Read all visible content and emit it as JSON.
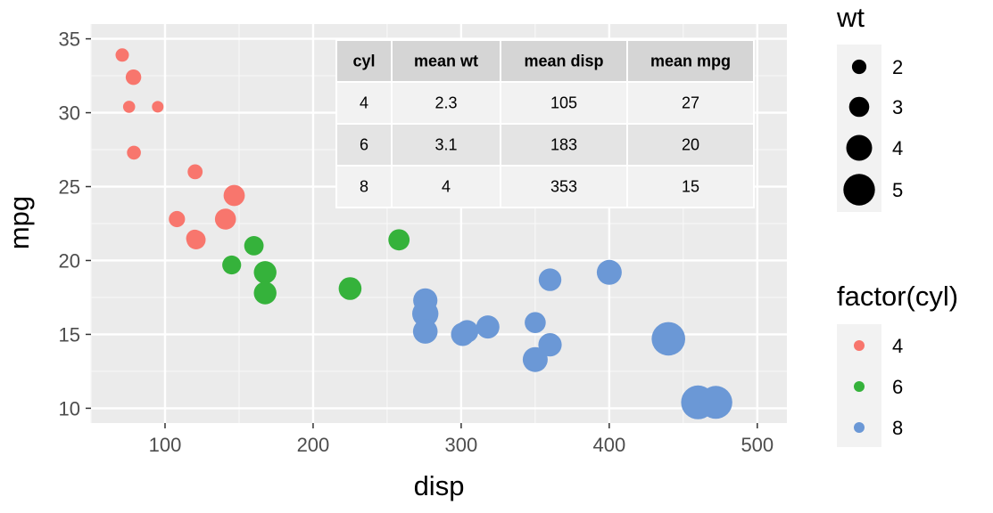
{
  "chart_data": {
    "type": "scatter",
    "xlabel": "disp",
    "ylabel": "mpg",
    "xlim": [
      50,
      520
    ],
    "ylim": [
      9,
      36
    ],
    "x_ticks": [
      100,
      200,
      300,
      400,
      500
    ],
    "y_ticks": [
      10,
      15,
      20,
      25,
      30,
      35
    ],
    "grid": true,
    "size_legend": {
      "title": "wt",
      "values": [
        2,
        3,
        4,
        5
      ]
    },
    "color_legend": {
      "title": "factor(cyl)",
      "entries": [
        {
          "label": "4",
          "color": "#F8766D"
        },
        {
          "label": "6",
          "color": "#35B23B"
        },
        {
          "label": "8",
          "color": "#6B98D6"
        }
      ]
    },
    "table": {
      "headers": [
        "cyl",
        "mean wt",
        "mean disp",
        "mean mpg"
      ],
      "rows": [
        [
          "4",
          "2.3",
          "105",
          "27"
        ],
        [
          "6",
          "3.1",
          "183",
          "20"
        ],
        [
          "8",
          "4",
          "353",
          "15"
        ]
      ]
    },
    "series": [
      {
        "name": "4",
        "color": "#F8766D",
        "points": [
          {
            "x": 71.1,
            "y": 33.9,
            "wt": 1.8
          },
          {
            "x": 78.7,
            "y": 32.4,
            "wt": 2.2
          },
          {
            "x": 75.7,
            "y": 30.4,
            "wt": 1.6
          },
          {
            "x": 95.1,
            "y": 30.4,
            "wt": 1.5
          },
          {
            "x": 79.0,
            "y": 27.3,
            "wt": 1.9
          },
          {
            "x": 120.3,
            "y": 26.0,
            "wt": 2.1
          },
          {
            "x": 108.0,
            "y": 22.8,
            "wt": 2.3
          },
          {
            "x": 146.7,
            "y": 24.4,
            "wt": 3.2
          },
          {
            "x": 140.8,
            "y": 22.8,
            "wt": 3.15
          },
          {
            "x": 120.1,
            "y": 21.5,
            "wt": 2.5
          },
          {
            "x": 121.0,
            "y": 21.4,
            "wt": 2.8
          }
        ]
      },
      {
        "name": "6",
        "color": "#35B23B",
        "points": [
          {
            "x": 160.0,
            "y": 21.0,
            "wt": 2.62
          },
          {
            "x": 160.0,
            "y": 21.0,
            "wt": 2.88
          },
          {
            "x": 258.0,
            "y": 21.4,
            "wt": 3.2
          },
          {
            "x": 145.0,
            "y": 19.7,
            "wt": 2.77
          },
          {
            "x": 167.6,
            "y": 19.2,
            "wt": 3.44
          },
          {
            "x": 167.6,
            "y": 17.8,
            "wt": 3.44
          },
          {
            "x": 225.0,
            "y": 18.1,
            "wt": 3.46
          }
        ]
      },
      {
        "name": "8",
        "color": "#6B98D6",
        "points": [
          {
            "x": 275.8,
            "y": 17.3,
            "wt": 3.73
          },
          {
            "x": 275.8,
            "y": 16.4,
            "wt": 4.07
          },
          {
            "x": 275.8,
            "y": 15.2,
            "wt": 3.78
          },
          {
            "x": 304.0,
            "y": 15.2,
            "wt": 3.44
          },
          {
            "x": 301.0,
            "y": 15.0,
            "wt": 3.57
          },
          {
            "x": 318.0,
            "y": 15.5,
            "wt": 3.52
          },
          {
            "x": 350.0,
            "y": 15.8,
            "wt": 3.17
          },
          {
            "x": 350.0,
            "y": 13.3,
            "wt": 3.84
          },
          {
            "x": 360.0,
            "y": 14.3,
            "wt": 3.57
          },
          {
            "x": 360.0,
            "y": 18.7,
            "wt": 3.44
          },
          {
            "x": 400.0,
            "y": 19.2,
            "wt": 3.85
          },
          {
            "x": 440.0,
            "y": 14.7,
            "wt": 5.35
          },
          {
            "x": 460.0,
            "y": 10.4,
            "wt": 5.42
          },
          {
            "x": 472.0,
            "y": 10.4,
            "wt": 5.25
          }
        ]
      }
    ]
  }
}
